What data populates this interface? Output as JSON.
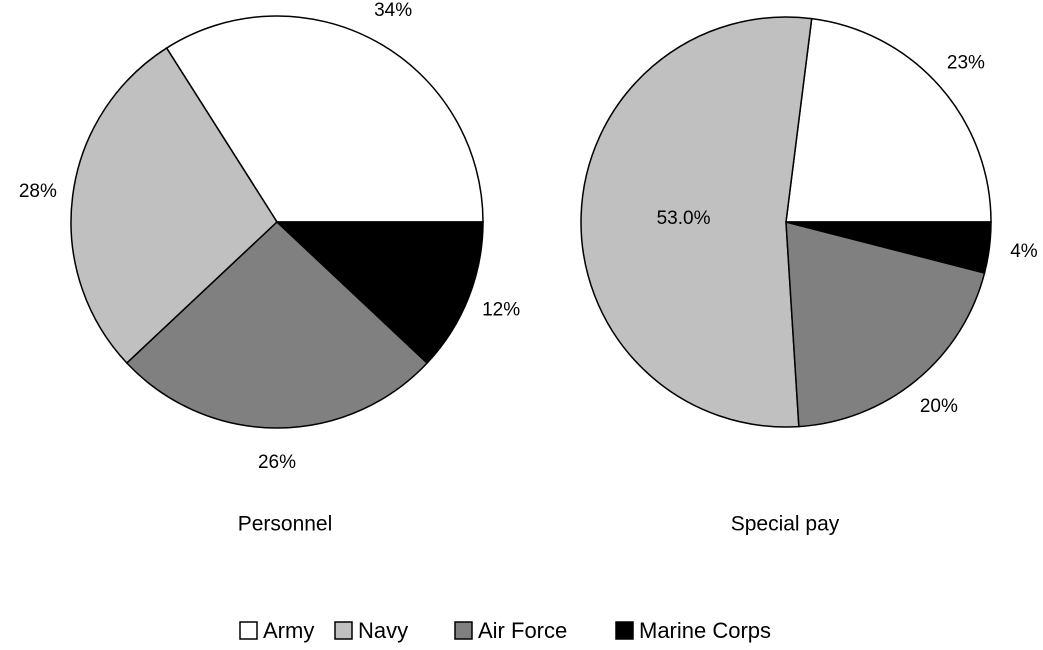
{
  "chart_data": [
    {
      "type": "pie",
      "title": "Personnel",
      "categories": [
        "Army",
        "Navy",
        "Air Force",
        "Marine Corps"
      ],
      "values": [
        34,
        28,
        26,
        12
      ],
      "value_labels": [
        "34%",
        "28%",
        "26%",
        "12%"
      ],
      "colors": [
        "#ffffff",
        "#c0c0c0",
        "#808080",
        "#000000"
      ]
    },
    {
      "type": "pie",
      "title": "Special pay",
      "categories": [
        "Army",
        "Navy",
        "Air Force",
        "Marine Corps"
      ],
      "values": [
        23,
        53,
        20,
        4
      ],
      "value_labels": [
        "23%",
        "53.0%",
        "20%",
        "4%"
      ],
      "colors": [
        "#ffffff",
        "#c0c0c0",
        "#808080",
        "#000000"
      ]
    }
  ]
}
